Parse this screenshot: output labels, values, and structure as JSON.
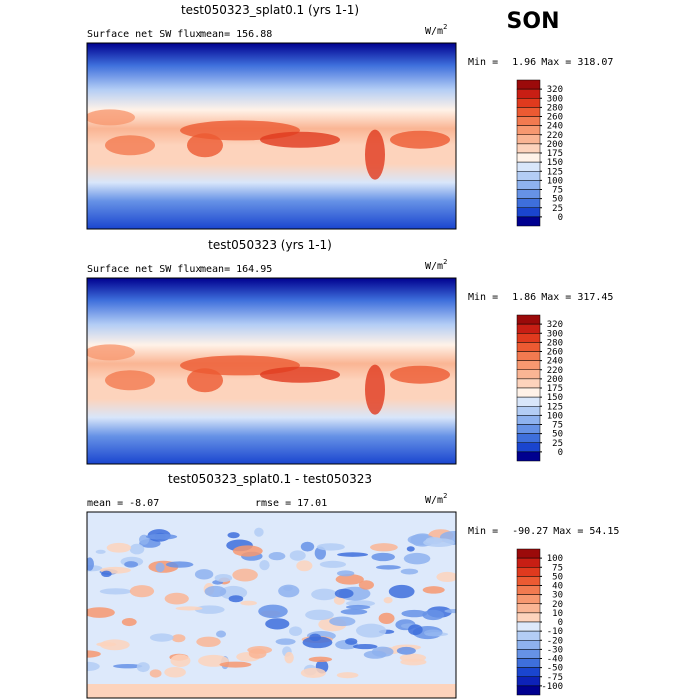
{
  "season": "SON",
  "panels": [
    {
      "title": "test050323_splat0.1 (yrs 1-1)",
      "left_label": "Surface net SW flux",
      "stats": [
        {
          "label": "mean=",
          "value": 156.88
        }
      ],
      "units": "W/m",
      "units_sup": "2",
      "min_label": "Min =",
      "min": 1.96,
      "max_label": "Max =",
      "max": 318.07,
      "field": "mean",
      "colorbar": {
        "levels": [
          320,
          300,
          280,
          260,
          240,
          220,
          200,
          175,
          150,
          125,
          100,
          75,
          50,
          25,
          0
        ],
        "colors": [
          "#9b0a0a",
          "#c81e14",
          "#e03a1e",
          "#ec5a32",
          "#f27a50",
          "#f79870",
          "#fab594",
          "#fdd3bc",
          "#fff2e8",
          "#d8e6fa",
          "#b3cdf5",
          "#8eb2ef",
          "#6692e6",
          "#3e6fdc",
          "#1a45cf",
          "#00008f"
        ]
      }
    },
    {
      "title": "test050323 (yrs 1-1)",
      "left_label": "Surface net SW flux",
      "stats": [
        {
          "label": "mean=",
          "value": 164.95
        }
      ],
      "units": "W/m",
      "units_sup": "2",
      "min_label": "Min =",
      "min": 1.86,
      "max_label": "Max =",
      "max": 317.45,
      "field": "mean",
      "colorbar": {
        "levels": [
          320,
          300,
          280,
          260,
          240,
          220,
          200,
          175,
          150,
          125,
          100,
          75,
          50,
          25,
          0
        ],
        "colors": [
          "#9b0a0a",
          "#c81e14",
          "#e03a1e",
          "#ec5a32",
          "#f27a50",
          "#f79870",
          "#fab594",
          "#fdd3bc",
          "#fff2e8",
          "#d8e6fa",
          "#b3cdf5",
          "#8eb2ef",
          "#6692e6",
          "#3e6fdc",
          "#1a45cf",
          "#00008f"
        ]
      }
    },
    {
      "title": "test050323_splat0.1 - test050323",
      "left_label": null,
      "stats": [
        {
          "label": "mean =",
          "value": -8.07
        },
        {
          "label": "rmse =",
          "value": 17.01
        }
      ],
      "units": "W/m",
      "units_sup": "2",
      "min_label": "Min =",
      "min": -90.27,
      "max_label": "Max =",
      "max": 54.15,
      "field": "diff",
      "colorbar": {
        "levels": [
          100,
          75,
          50,
          40,
          30,
          20,
          10,
          0,
          -10,
          -20,
          -30,
          -40,
          -50,
          -75,
          -100
        ],
        "colors": [
          "#9b0a0a",
          "#c81e14",
          "#e03a1e",
          "#ec5a32",
          "#f27a50",
          "#f79870",
          "#fab594",
          "#fdd3bc",
          "#dde9fb",
          "#b3cdf5",
          "#8eb2ef",
          "#6692e6",
          "#3e6fdc",
          "#1a45cf",
          "#0d22b8",
          "#00008f"
        ]
      }
    }
  ]
}
